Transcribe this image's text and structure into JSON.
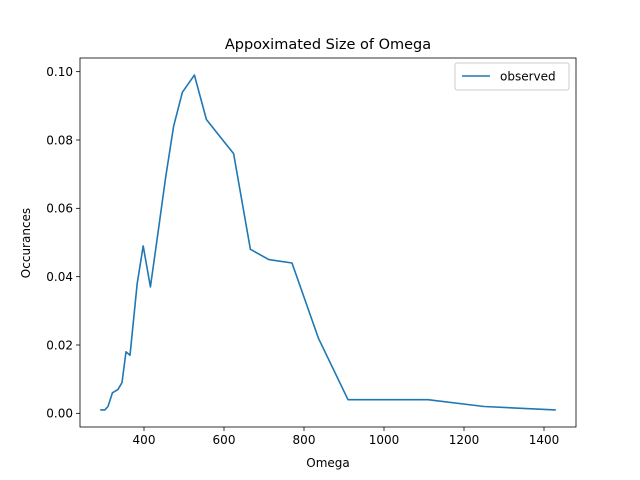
{
  "chart_data": {
    "type": "line",
    "title": "Appoximated Size of Omega",
    "xlabel": "Omega",
    "ylabel": "Occurances",
    "xlim": [
      240,
      1480
    ],
    "ylim": [
      -0.004,
      0.104
    ],
    "xticks": [
      400,
      600,
      800,
      1000,
      1200,
      1400
    ],
    "xtick_labels": [
      "400",
      "600",
      "800",
      "1000",
      "1200",
      "1400"
    ],
    "yticks": [
      0.0,
      0.02,
      0.04,
      0.06,
      0.08,
      0.1
    ],
    "ytick_labels": [
      "0.00",
      "0.02",
      "0.04",
      "0.06",
      "0.08",
      "0.10"
    ],
    "grid": false,
    "legend": {
      "position": "top-right"
    },
    "series": [
      {
        "name": "observed",
        "color": "#1f77b4",
        "x": [
          292,
          302,
          310,
          321,
          335,
          345,
          355,
          365,
          383,
          398,
          416,
          434,
          454,
          474,
          496,
          526,
          556,
          590,
          624,
          666,
          712,
          770,
          836,
          910,
          1110,
          1250,
          1428
        ],
        "y": [
          0.001,
          0.001,
          0.002,
          0.006,
          0.007,
          0.009,
          0.018,
          0.017,
          0.038,
          0.049,
          0.037,
          0.052,
          0.069,
          0.084,
          0.094,
          0.099,
          0.086,
          0.081,
          0.076,
          0.048,
          0.045,
          0.044,
          0.022,
          0.004,
          0.004,
          0.002,
          0.001
        ]
      }
    ]
  }
}
